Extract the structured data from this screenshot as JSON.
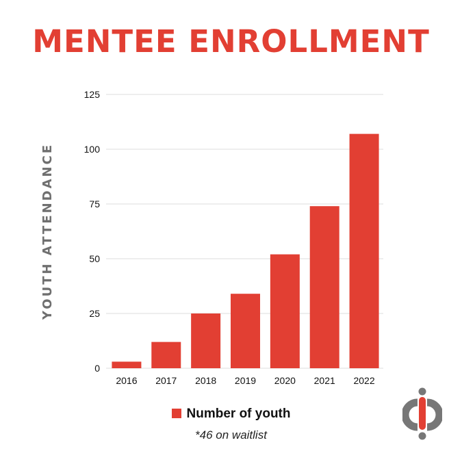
{
  "chart_data": {
    "type": "bar",
    "title": "MENTEE ENROLLMENT",
    "xlabel": "",
    "ylabel": "YOUTH ATTENDANCE",
    "categories": [
      "2016",
      "2017",
      "2018",
      "2019",
      "2020",
      "2021",
      "2022"
    ],
    "series": [
      {
        "name": "Number of youth",
        "values": [
          3,
          12,
          25,
          34,
          52,
          74,
          107
        ]
      }
    ],
    "ylim": [
      0,
      125
    ],
    "yticks": [
      0,
      25,
      50,
      75,
      100,
      125
    ],
    "grid": true,
    "legend": "bottom-center",
    "note": "*46 on waitlist",
    "colors": {
      "bar": "#e23f33",
      "grid": "#dddddd",
      "axis_label": "#6f6f6f"
    }
  },
  "logo": {
    "icon": "brand-logo-icon",
    "colors": {
      "primary": "#e23f33",
      "secondary": "#777777"
    }
  }
}
